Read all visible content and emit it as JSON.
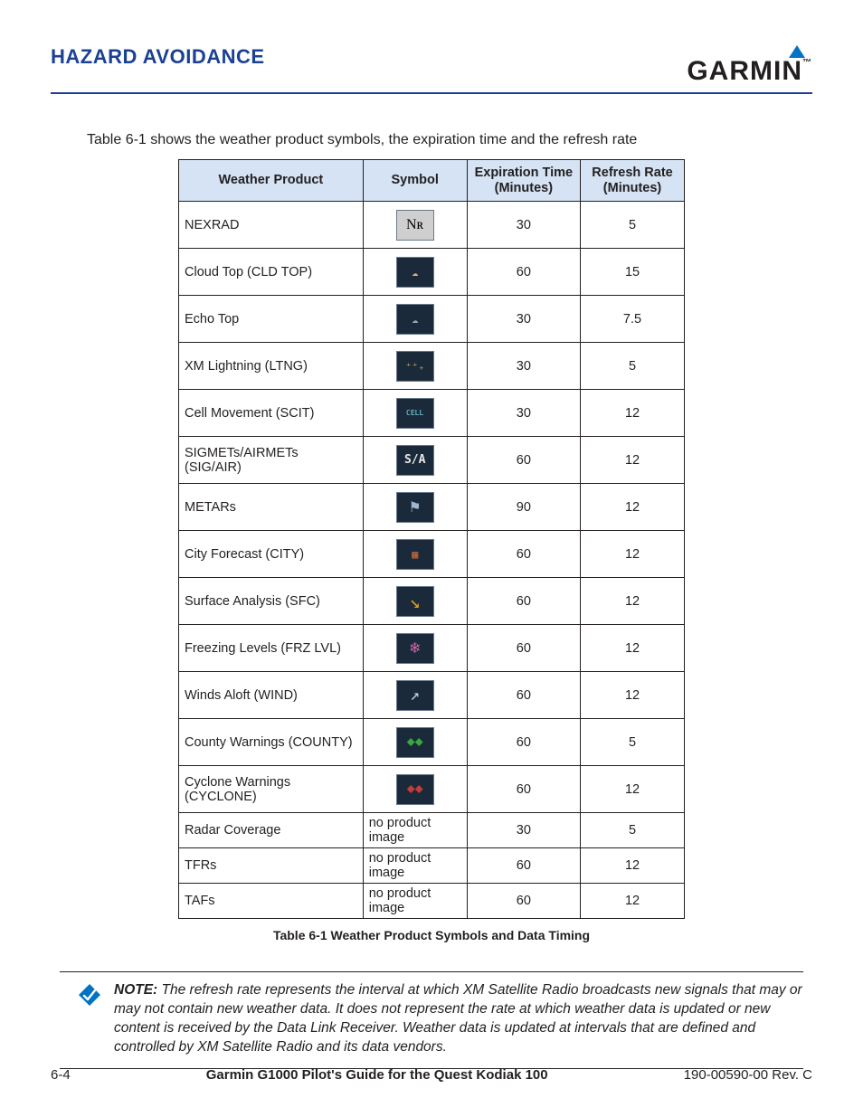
{
  "header": {
    "section_title": "HAZARD AVOIDANCE",
    "logo_text": "GARMIN",
    "logo_tm": "™"
  },
  "intro": "Table 6-1 shows the weather product symbols, the expiration time and the refresh rate",
  "table": {
    "columns": [
      "Weather Product",
      "Symbol",
      "Expiration Time (Minutes)",
      "Refresh Rate (Minutes)"
    ],
    "rows": [
      {
        "product": "NEXRAD",
        "expiration": "30",
        "refresh": "5",
        "has_image": true,
        "sym": "Nʀ",
        "bg": "#cfcfcf",
        "fg": "#000",
        "ff": "serif",
        "fs": "16px"
      },
      {
        "product": "Cloud Top (CLD TOP)",
        "expiration": "60",
        "refresh": "15",
        "has_image": true,
        "sym": "☁",
        "bg": "#1a2a3a",
        "fg": "#d8b080"
      },
      {
        "product": "Echo Top",
        "expiration": "30",
        "refresh": "7.5",
        "has_image": true,
        "sym": "☁",
        "bg": "#1a2a3a",
        "fg": "#9aa6b2"
      },
      {
        "product": "XM Lightning (LTNG)",
        "expiration": "30",
        "refresh": "5",
        "has_image": true,
        "sym": "⁺⁺₊",
        "bg": "#1a2a3a",
        "fg": "#c9a24a"
      },
      {
        "product": "Cell Movement (SCIT)",
        "expiration": "30",
        "refresh": "12",
        "has_image": true,
        "sym": "CELL",
        "bg": "#1a2a3a",
        "fg": "#7fe0e8",
        "fs": "8px"
      },
      {
        "product": "SIGMETs/AIRMETs (SIG/AIR)",
        "expiration": "60",
        "refresh": "12",
        "has_image": true,
        "sym": "S/A",
        "bg": "#1a2a3a",
        "fg": "#e8e8e8",
        "fs": "13px",
        "fw": "700"
      },
      {
        "product": "METARs",
        "expiration": "90",
        "refresh": "12",
        "has_image": true,
        "sym": "⚑",
        "bg": "#1a2a3a",
        "fg": "#9db8d4",
        "fs": "18px"
      },
      {
        "product": "City Forecast (CITY)",
        "expiration": "60",
        "refresh": "12",
        "has_image": true,
        "sym": "▦",
        "bg": "#1a2a3a",
        "fg": "#c46a3a"
      },
      {
        "product": "Surface Analysis (SFC)",
        "expiration": "60",
        "refresh": "12",
        "has_image": true,
        "sym": "↘",
        "bg": "#1a2a3a",
        "fg": "#e0a028",
        "fs": "20px"
      },
      {
        "product": "Freezing Levels (FRZ LVL)",
        "expiration": "60",
        "refresh": "12",
        "has_image": true,
        "sym": "❄",
        "bg": "#1a2a3a",
        "fg": "#c86aa8",
        "fs": "18px"
      },
      {
        "product": "Winds Aloft (WIND)",
        "expiration": "60",
        "refresh": "12",
        "has_image": true,
        "sym": "↗",
        "bg": "#1a2a3a",
        "fg": "#d0d0d0",
        "fs": "18px"
      },
      {
        "product": "County Warnings (COUNTY)",
        "expiration": "60",
        "refresh": "5",
        "has_image": true,
        "sym": "⬥⬥",
        "bg": "#1a2a3a",
        "fg": "#3aa83a",
        "fs": "13px"
      },
      {
        "product": "Cyclone Warnings (CYCLONE)",
        "expiration": "60",
        "refresh": "12",
        "has_image": true,
        "sym": "⬥⬥",
        "bg": "#1a2a3a",
        "fg": "#c83a3a",
        "fs": "13px"
      },
      {
        "product": "Radar Coverage",
        "symbol_text": "no product image",
        "expiration": "30",
        "refresh": "5",
        "has_image": false
      },
      {
        "product": "TFRs",
        "symbol_text": "no product image",
        "expiration": "60",
        "refresh": "12",
        "has_image": false
      },
      {
        "product": "TAFs",
        "symbol_text": "no product image",
        "expiration": "60",
        "refresh": "12",
        "has_image": false
      }
    ],
    "caption": "Table 6-1  Weather Product Symbols and Data Timing"
  },
  "note": {
    "label": "NOTE:",
    "body": "The refresh rate represents the interval at which XM Satellite Radio broadcasts new signals that may or may not contain new weather data.  It does not represent the rate at which weather data is updated or new content is received by the Data Link Receiver.  Weather data is updated at intervals that are defined and controlled by XM Satellite Radio and its data vendors."
  },
  "footer": {
    "page": "6-4",
    "title": "Garmin G1000 Pilot's Guide for the Quest Kodiak 100",
    "rev": "190-00590-00  Rev. C"
  },
  "colors": {
    "accent": "#1a4194",
    "header_bg": "#d5e3f4",
    "icon_fill": "#0073c4",
    "border": "#231f20"
  }
}
